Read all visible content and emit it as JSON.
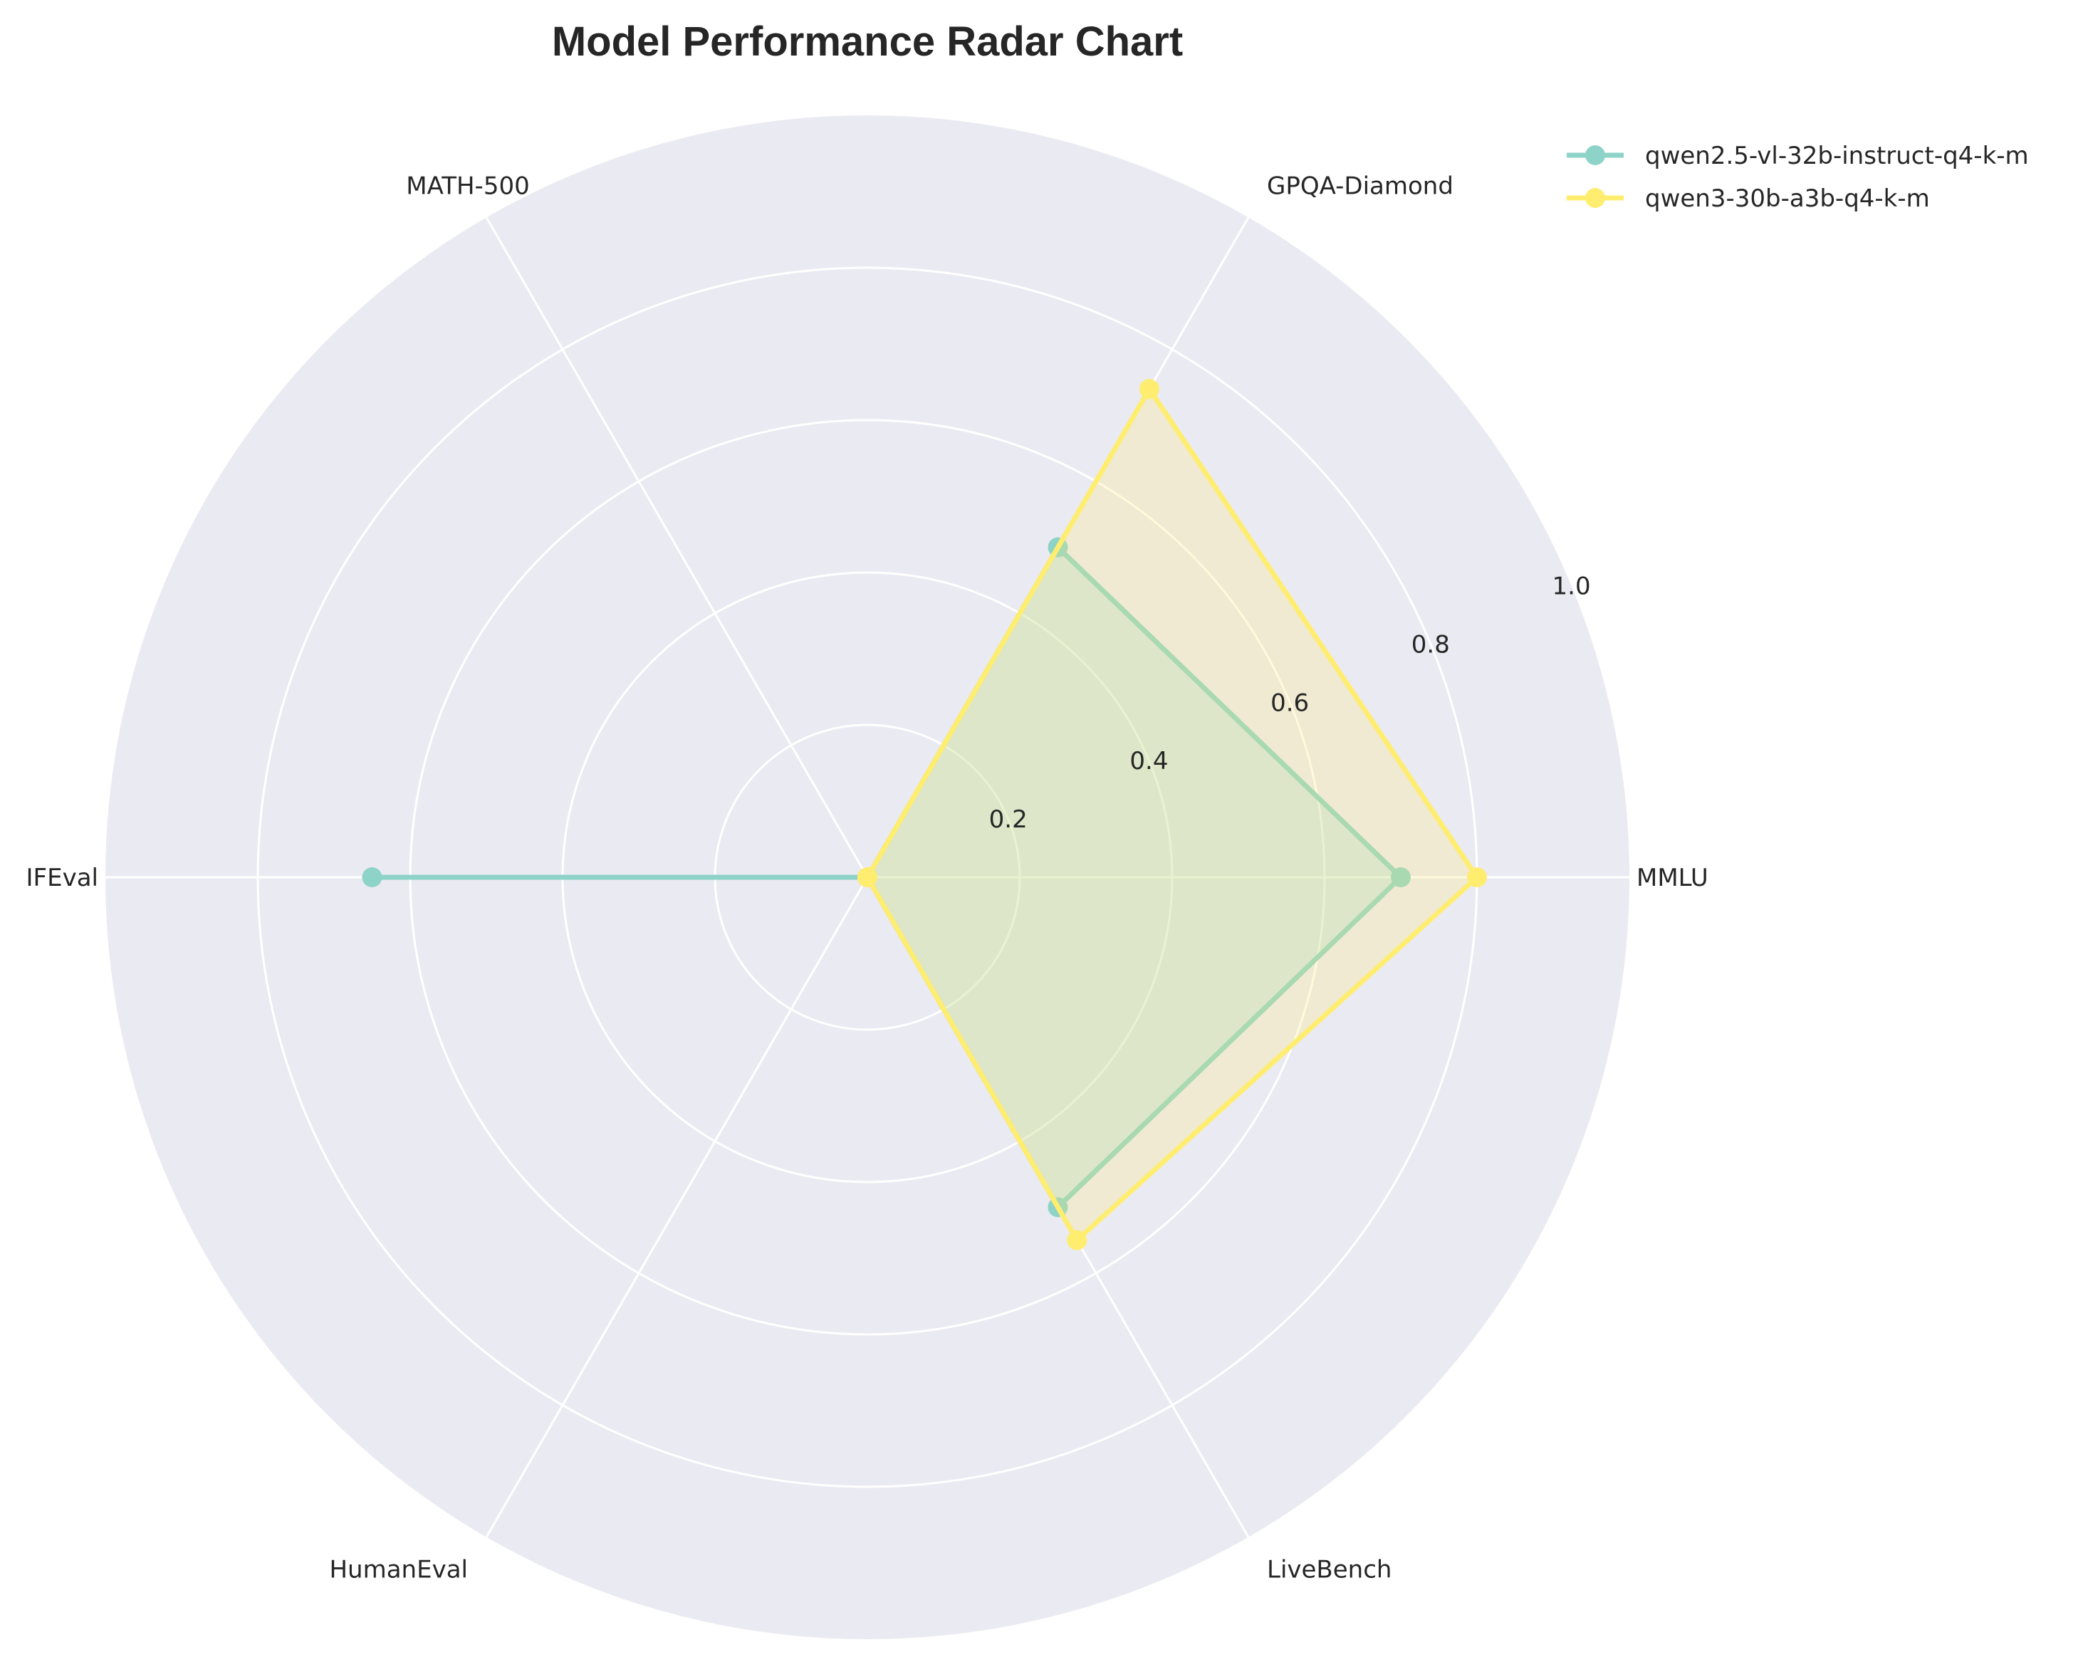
{
  "chart_data": {
    "type": "radar",
    "title": "Model Performance Radar Chart",
    "categories": [
      "MMLU",
      "GPQA-Diamond",
      "MATH-500",
      "IFEval",
      "HumanEval",
      "LiveBench"
    ],
    "rticks": [
      "0.2",
      "0.4",
      "0.6",
      "0.8",
      "1.0"
    ],
    "rtick_values": [
      0.2,
      0.4,
      0.6,
      0.8,
      1.0
    ],
    "rlim": [
      0,
      1.0
    ],
    "grid": true,
    "legend_position": "top-right",
    "series": [
      {
        "name": "qwen2.5-vl-32b-instruct-q4-k-m",
        "color": "#8dd3c7",
        "values": [
          0.7,
          0.5,
          0.0,
          0.65,
          0.0,
          0.5
        ]
      },
      {
        "name": "qwen3-30b-a3b-q4-k-m",
        "color": "#ffed6f",
        "values": [
          0.8,
          0.74,
          0.0,
          0.0,
          0.0,
          0.55
        ]
      }
    ],
    "colors": {
      "plot_background": "#eaeaf2",
      "grid": "#ffffff"
    }
  }
}
